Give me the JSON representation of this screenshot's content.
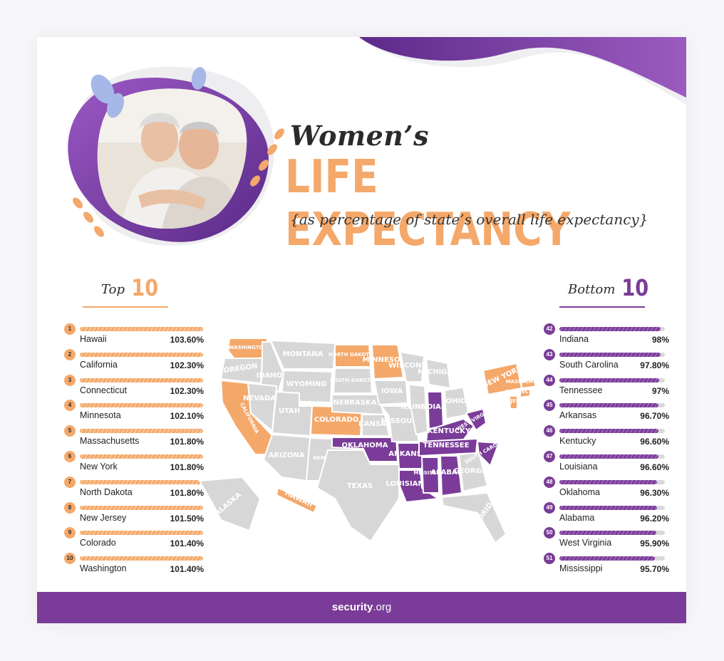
{
  "header": {
    "title_line1": "Women’s",
    "title_line2": "LIFE EXPECTANCY",
    "subtitle": "{as percentage of state’s overall life expectancy}"
  },
  "top_heading": {
    "label": "Top",
    "number": "10"
  },
  "bottom_heading": {
    "label": "Bottom",
    "number": "10"
  },
  "colors": {
    "top": "#f4a86a",
    "bottom": "#7a3c98",
    "neutral": "#d7d7d7",
    "footer": "#7a3c98"
  },
  "map_labels": {
    "top_states": [
      "WASHINGTON",
      "CALIFORNIA",
      "COLORADO",
      "NORTH DAKOTA",
      "MINNESOTA",
      "NEW YORK",
      "NEW JERSEY",
      "CONNECTICUT",
      "MASSACHUSETTS",
      "HAWAII"
    ],
    "bottom_states": [
      "OKLAHOMA",
      "ARKANSAS",
      "LOUISIANA",
      "MISSISSIPPI",
      "ALABAMA",
      "TENNESSEE",
      "KENTUCKY",
      "INDIANA",
      "SOUTH CAROLINA",
      "WEST VIRGINIA"
    ],
    "other_states": [
      "OREGON",
      "IDAHO",
      "MONTANA",
      "WYOMING",
      "NEVADA",
      "UTAH",
      "ARIZONA",
      "NEW MEXICO",
      "SOUTH DAKOTA",
      "NEBRASKA",
      "KANSAS",
      "TEXAS",
      "IOWA",
      "MISSOURI",
      "WISCONSIN",
      "ILLINOIS",
      "MICHIGAN",
      "OHIO",
      "GEORGIA",
      "FLORIDA",
      "ALASKA"
    ]
  },
  "chart_data": {
    "type": "table",
    "title": "Women’s LIFE EXPECTANCY",
    "subtitle": "{as percentage of state’s overall life expectancy}",
    "top10": [
      {
        "rank": "1",
        "state": "Hawaii",
        "value": "103.60%"
      },
      {
        "rank": "2",
        "state": "California",
        "value": "102.30%"
      },
      {
        "rank": "3",
        "state": "Connecticut",
        "value": "102.30%"
      },
      {
        "rank": "4",
        "state": "Minnesota",
        "value": "102.10%"
      },
      {
        "rank": "5",
        "state": "Massachusetts",
        "value": "101.80%"
      },
      {
        "rank": "6",
        "state": "New York",
        "value": "101.80%"
      },
      {
        "rank": "7",
        "state": "North Dakota",
        "value": "101.80%"
      },
      {
        "rank": "8",
        "state": "New Jersey",
        "value": "101.50%"
      },
      {
        "rank": "9",
        "state": "Colorado",
        "value": "101.40%"
      },
      {
        "rank": "10",
        "state": "Washington",
        "value": "101.40%"
      }
    ],
    "bottom10": [
      {
        "rank": "42",
        "state": "Indiana",
        "value": "98%"
      },
      {
        "rank": "43",
        "state": "South Carolina",
        "value": "97.80%"
      },
      {
        "rank": "44",
        "state": "Tennessee",
        "value": "97%"
      },
      {
        "rank": "45",
        "state": "Arkansas",
        "value": "96.70%"
      },
      {
        "rank": "46",
        "state": "Kentucky",
        "value": "96.60%"
      },
      {
        "rank": "47",
        "state": "Louisiana",
        "value": "96.60%"
      },
      {
        "rank": "48",
        "state": "Oklahoma",
        "value": "96.30%"
      },
      {
        "rank": "49",
        "state": "Alabama",
        "value": "96.20%"
      },
      {
        "rank": "50",
        "state": "West Virginia",
        "value": "95.90%"
      },
      {
        "rank": "51",
        "state": "Mississippi",
        "value": "95.70%"
      }
    ],
    "bottom_bar_fill": [
      0.97,
      0.97,
      0.96,
      0.95,
      0.95,
      0.95,
      0.94,
      0.94,
      0.93,
      0.92
    ]
  },
  "footer": {
    "brand_bold": "security",
    "brand_rest": ".org"
  }
}
